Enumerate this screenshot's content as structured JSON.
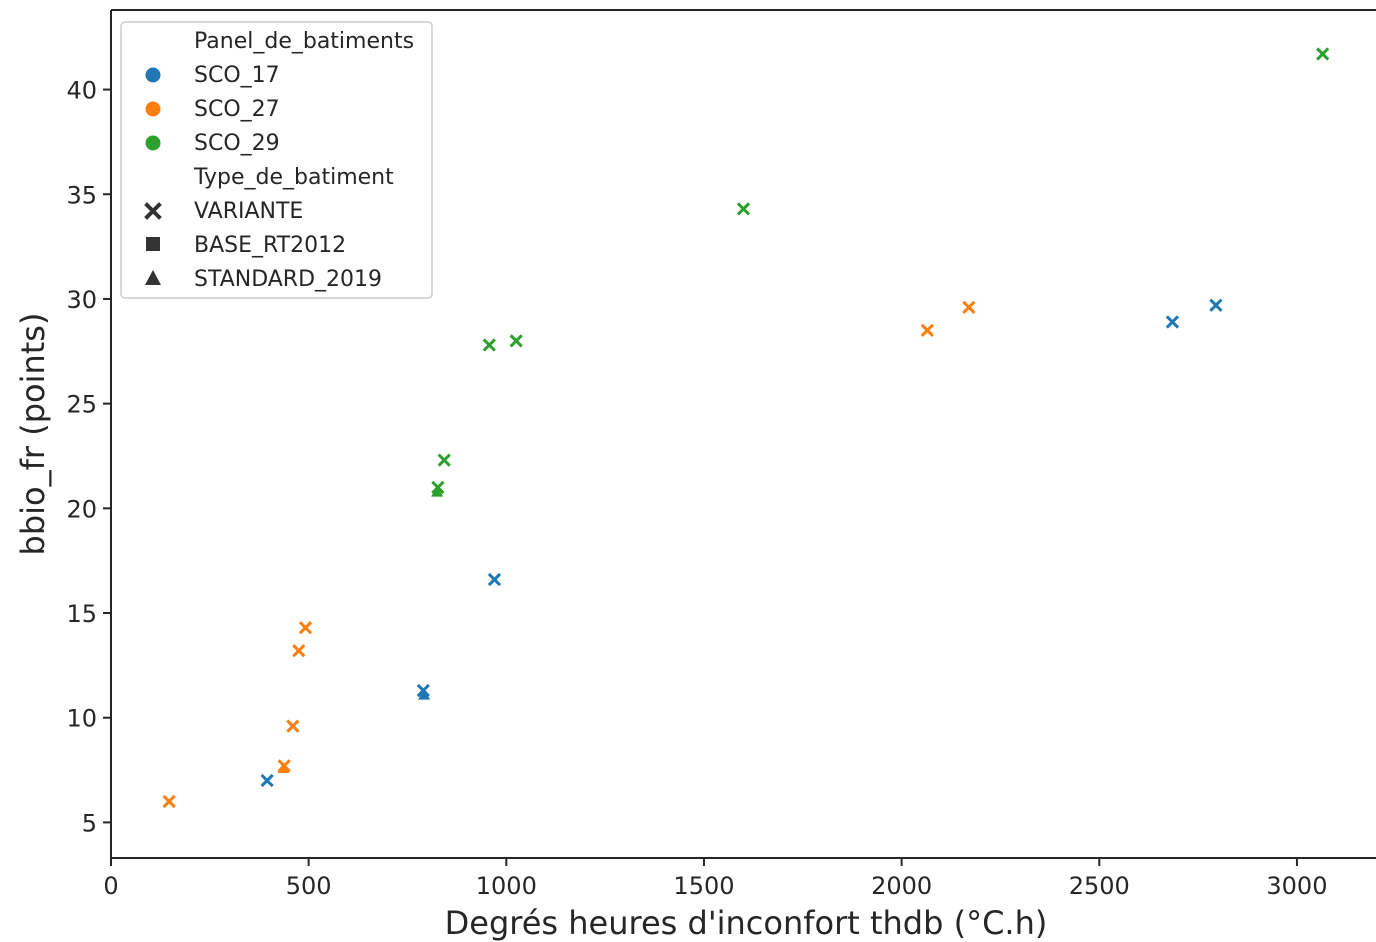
{
  "chart_data": {
    "type": "scatter",
    "title": "",
    "xlabel": "Degrés heures d'inconfort thdb (°C.h)",
    "ylabel": "bbio_fr (points)",
    "xlim": [
      0,
      3200
    ],
    "ylim": [
      3.3,
      43.8
    ],
    "x_ticks": [
      0,
      500,
      1000,
      1500,
      2000,
      2500,
      3000
    ],
    "y_ticks": [
      5,
      10,
      15,
      20,
      25,
      30,
      35,
      40
    ],
    "grid": false,
    "legend_position": "top-left",
    "colors": {
      "SCO_17": "#1f77b4",
      "SCO_27": "#ff7f0e",
      "SCO_29": "#2ca02c"
    },
    "legend": {
      "hue_title": "Panel_de_batiments",
      "hue_entries": [
        "SCO_17",
        "SCO_27",
        "SCO_29"
      ],
      "style_title": "Type_de_batiment",
      "style_entries": [
        {
          "label": "VARIANTE",
          "marker": "x"
        },
        {
          "label": "BASE_RT2012",
          "marker": "square"
        },
        {
          "label": "STANDARD_2019",
          "marker": "triangle"
        }
      ]
    },
    "points": [
      {
        "panel": "SCO_17",
        "type": "VARIANTE",
        "x": 395,
        "y": 7.0
      },
      {
        "panel": "SCO_17",
        "type": "VARIANTE",
        "x": 790,
        "y": 11.3
      },
      {
        "panel": "SCO_17",
        "type": "STANDARD_2019",
        "x": 792,
        "y": 11.1
      },
      {
        "panel": "SCO_17",
        "type": "VARIANTE",
        "x": 970,
        "y": 16.6
      },
      {
        "panel": "SCO_17",
        "type": "VARIANTE",
        "x": 2685,
        "y": 28.9
      },
      {
        "panel": "SCO_17",
        "type": "VARIANTE",
        "x": 2795,
        "y": 29.7
      },
      {
        "panel": "SCO_27",
        "type": "VARIANTE",
        "x": 147,
        "y": 6.0
      },
      {
        "panel": "SCO_27",
        "type": "VARIANTE",
        "x": 438,
        "y": 7.7
      },
      {
        "panel": "SCO_27",
        "type": "STANDARD_2019",
        "x": 436,
        "y": 7.6
      },
      {
        "panel": "SCO_27",
        "type": "VARIANTE",
        "x": 460,
        "y": 9.6
      },
      {
        "panel": "SCO_27",
        "type": "VARIANTE",
        "x": 475,
        "y": 13.2
      },
      {
        "panel": "SCO_27",
        "type": "VARIANTE",
        "x": 492,
        "y": 14.3
      },
      {
        "panel": "SCO_27",
        "type": "VARIANTE",
        "x": 2065,
        "y": 28.5
      },
      {
        "panel": "SCO_27",
        "type": "VARIANTE",
        "x": 2170,
        "y": 29.6
      },
      {
        "panel": "SCO_29",
        "type": "VARIANTE",
        "x": 827,
        "y": 21.0
      },
      {
        "panel": "SCO_29",
        "type": "STANDARD_2019",
        "x": 825,
        "y": 20.8
      },
      {
        "panel": "SCO_29",
        "type": "VARIANTE",
        "x": 843,
        "y": 22.3
      },
      {
        "panel": "SCO_29",
        "type": "VARIANTE",
        "x": 957,
        "y": 27.8
      },
      {
        "panel": "SCO_29",
        "type": "VARIANTE",
        "x": 1025,
        "y": 28.0
      },
      {
        "panel": "SCO_29",
        "type": "VARIANTE",
        "x": 1600,
        "y": 34.3
      },
      {
        "panel": "SCO_29",
        "type": "VARIANTE",
        "x": 3065,
        "y": 41.7
      }
    ]
  }
}
